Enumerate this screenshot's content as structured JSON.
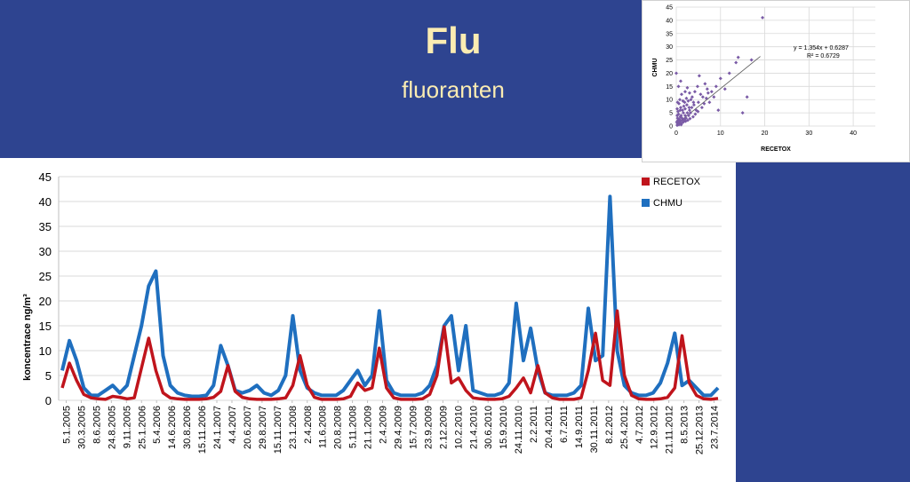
{
  "slide": {
    "title": "Flu",
    "subtitle": "fluoranten"
  },
  "colors": {
    "background": "#2e4490",
    "title_text": "#fbecb2",
    "recetox": "#c0141c",
    "chmu": "#1f6fbf",
    "scatter_points": "#7a5ba6",
    "grid": "#d9d9d9"
  },
  "chart_data": [
    {
      "id": "timeseries",
      "type": "line",
      "title": "",
      "xlabel": "",
      "ylabel": "koncentrace ng/m³",
      "ylim": [
        0,
        45
      ],
      "y_ticks": [
        0,
        5,
        10,
        15,
        20,
        25,
        30,
        35,
        40,
        45
      ],
      "grid": true,
      "legend_position": "top-right",
      "x_tick_labels": [
        "5.1.2005",
        "30.3.2005",
        "8.6.2005",
        "24.8.2005",
        "9.11.2005",
        "25.1.2006",
        "5.4.2006",
        "14.6.2006",
        "30.8.2006",
        "15.11.2006",
        "24.1.2007",
        "4.4.2007",
        "20.6.2007",
        "29.8.2007",
        "15.11.2007",
        "23.1.2008",
        "2.4.2008",
        "11.6.2008",
        "20.8.2008",
        "5.11.2008",
        "21.1.2009",
        "2.4.2009",
        "29.4.2009",
        "15.7.2009",
        "23.9.2009",
        "2.12.2009",
        "10.2.2010",
        "21.4.2010",
        "30.6.2010",
        "15.9.2010",
        "24.11.2010",
        "2.2.2011",
        "20.4.2011",
        "6.7.2011",
        "14.9.2011",
        "30.11.2011",
        "8.2.2012",
        "25.4.2012",
        "4.7.2012",
        "12.9.2012",
        "21.11.2012",
        "8.5.2013",
        "25.12.2013",
        "23.7.2014"
      ],
      "series": [
        {
          "name": "RECETOX",
          "color": "#c0141c",
          "values": [
            2.5,
            7.5,
            4,
            1.2,
            0.5,
            0.3,
            0.2,
            0.8,
            0.6,
            0.3,
            0.5,
            6.5,
            12.5,
            6,
            1.5,
            0.5,
            0.3,
            0.2,
            0.2,
            0.2,
            0.3,
            0.6,
            1.8,
            7,
            1.8,
            0.6,
            0.3,
            0.2,
            0.2,
            0.2,
            0.3,
            0.5,
            3,
            9,
            3,
            0.6,
            0.2,
            0.2,
            0.2,
            0.3,
            0.8,
            3.5,
            2,
            2.5,
            10.5,
            2.5,
            0.5,
            0.2,
            0.2,
            0.2,
            0.3,
            1.2,
            5,
            14.8,
            3.5,
            4.5,
            2,
            0.5,
            0.3,
            0.2,
            0.2,
            0.3,
            0.8,
            2.5,
            4.5,
            1.5,
            7,
            1.5,
            0.5,
            0.2,
            0.2,
            0.2,
            0.5,
            6,
            13.5,
            4,
            3,
            18,
            5,
            1,
            0.3,
            0.2,
            0.2,
            0.3,
            0.6,
            2.5,
            13,
            3.5,
            1,
            0.3,
            0.2,
            0.4
          ]
        },
        {
          "name": "CHMU",
          "color": "#1f6fbf",
          "values": [
            6,
            12,
            8,
            2.5,
            1,
            1,
            2,
            3,
            1.5,
            3,
            9,
            15,
            23,
            26,
            9,
            3,
            1.5,
            1,
            0.8,
            0.8,
            1,
            3,
            11,
            7,
            2,
            1.5,
            2,
            3,
            1.5,
            1,
            2,
            5,
            17,
            6,
            2.5,
            1.5,
            1,
            1,
            1,
            2,
            4,
            6,
            3,
            5,
            18,
            4,
            1.5,
            1,
            1,
            1,
            1.5,
            3,
            7,
            15,
            17,
            6,
            15,
            2,
            1.5,
            1,
            1,
            1.5,
            3.5,
            19.5,
            8,
            14.5,
            6,
            1.5,
            1,
            1,
            1,
            1.5,
            3,
            18.5,
            8,
            9,
            41,
            10,
            3,
            1.5,
            1,
            1,
            1.5,
            3.5,
            7.5,
            13.5,
            3,
            4,
            2.5,
            1,
            1,
            2.5
          ]
        }
      ]
    },
    {
      "id": "scatter",
      "type": "scatter",
      "xlabel": "RECETOX",
      "ylabel": "CHMU",
      "xlim": [
        0,
        45
      ],
      "ylim": [
        0,
        45
      ],
      "x_ticks": [
        0,
        10,
        20,
        30,
        40
      ],
      "y_ticks": [
        0,
        5,
        10,
        15,
        20,
        25,
        30,
        35,
        40,
        45
      ],
      "grid": true,
      "annotation": {
        "equation": "y = 1.354x + 0.6287",
        "r_squared": "R² = 0.6729"
      },
      "trendline": {
        "slope": 1.354,
        "intercept": 0.6287,
        "x_range": [
          0,
          19
        ]
      },
      "points": [
        [
          0.2,
          0.3
        ],
        [
          0.3,
          0.8
        ],
        [
          0.5,
          1
        ],
        [
          0.4,
          1.5
        ],
        [
          0.6,
          0.5
        ],
        [
          0.8,
          1.2
        ],
        [
          1,
          2
        ],
        [
          0.7,
          2.5
        ],
        [
          1.2,
          1
        ],
        [
          1.5,
          2
        ],
        [
          0.3,
          3
        ],
        [
          0.9,
          3.5
        ],
        [
          1.3,
          3
        ],
        [
          1.8,
          2.5
        ],
        [
          2,
          4
        ],
        [
          0.5,
          4.5
        ],
        [
          1.1,
          4
        ],
        [
          1.6,
          5
        ],
        [
          2.2,
          3
        ],
        [
          2.5,
          5
        ],
        [
          0.4,
          5.5
        ],
        [
          1.4,
          6
        ],
        [
          2,
          6.5
        ],
        [
          2.8,
          4
        ],
        [
          3,
          6
        ],
        [
          0.2,
          6.5
        ],
        [
          1,
          7
        ],
        [
          1.7,
          7.5
        ],
        [
          2.4,
          8
        ],
        [
          3.2,
          5
        ],
        [
          3.5,
          7
        ],
        [
          0.6,
          8.5
        ],
        [
          1.9,
          9
        ],
        [
          2.7,
          9.5
        ],
        [
          4,
          8
        ],
        [
          4.5,
          6
        ],
        [
          0.8,
          10
        ],
        [
          2.3,
          10.5
        ],
        [
          3.6,
          11
        ],
        [
          5,
          9
        ],
        [
          5.5,
          12
        ],
        [
          1.2,
          12
        ],
        [
          3,
          12.5
        ],
        [
          4.2,
          13
        ],
        [
          6,
          11
        ],
        [
          7,
          14
        ],
        [
          0.5,
          15
        ],
        [
          2.5,
          14.5
        ],
        [
          4.8,
          15
        ],
        [
          6.5,
          16
        ],
        [
          8,
          13
        ],
        [
          9,
          15
        ],
        [
          10,
          18
        ],
        [
          11,
          14
        ],
        [
          12,
          20
        ],
        [
          13.5,
          24
        ],
        [
          14,
          26
        ],
        [
          15,
          5
        ],
        [
          16,
          11
        ],
        [
          17,
          25
        ],
        [
          19.5,
          41
        ],
        [
          0,
          20
        ],
        [
          0.3,
          9
        ],
        [
          1,
          17
        ],
        [
          2,
          13
        ],
        [
          3.3,
          10
        ],
        [
          5.2,
          19
        ],
        [
          7.5,
          9
        ],
        [
          8.5,
          11
        ],
        [
          9.5,
          6
        ],
        [
          0.1,
          1.5
        ],
        [
          0.6,
          2
        ],
        [
          1.1,
          0.5
        ],
        [
          1.6,
          1.5
        ],
        [
          2.1,
          1.8
        ],
        [
          2.6,
          2.2
        ],
        [
          3.1,
          2.8
        ],
        [
          3.8,
          3.5
        ],
        [
          4.3,
          4.5
        ],
        [
          4.9,
          5.5
        ],
        [
          5.8,
          7
        ],
        [
          6.3,
          8.5
        ],
        [
          6.8,
          10.5
        ],
        [
          7.2,
          12.5
        ],
        [
          0.9,
          6
        ],
        [
          1.5,
          9.5
        ],
        [
          2.9,
          7
        ],
        [
          3.9,
          9
        ],
        [
          0.2,
          4
        ],
        [
          0.4,
          2.2
        ]
      ]
    }
  ]
}
